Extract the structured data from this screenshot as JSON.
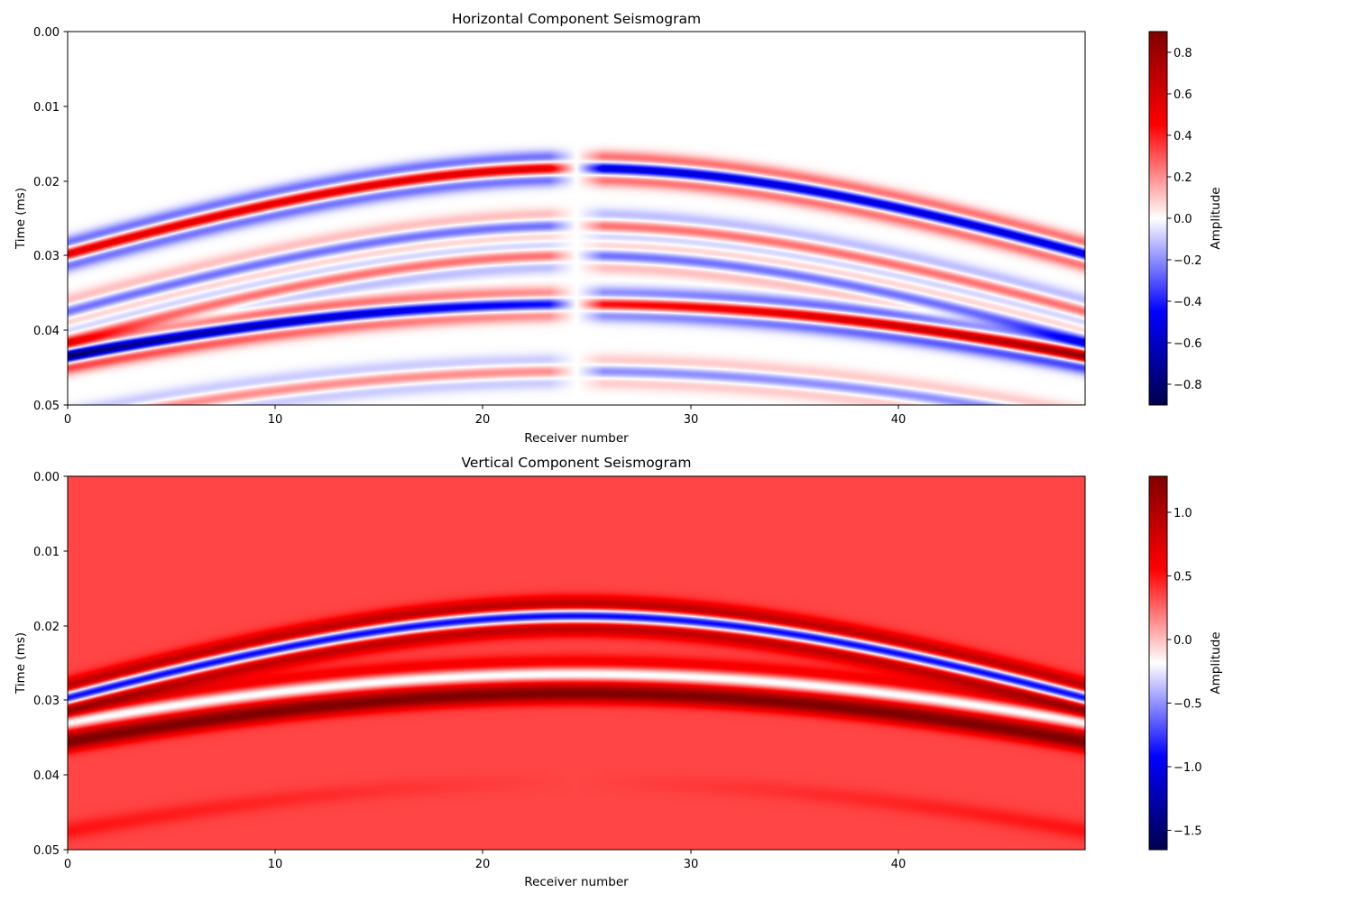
{
  "chart_data": [
    {
      "type": "heatmap",
      "title": "Horizontal Component Seismogram",
      "xlabel": "Receiver number",
      "ylabel": "Time (ms)",
      "xlim": [
        0,
        49
      ],
      "ylim": [
        0.05,
        0.0
      ],
      "x_ticks": [
        "0",
        "10",
        "20",
        "30",
        "40"
      ],
      "y_ticks": [
        "0.00",
        "0.01",
        "0.02",
        "0.03",
        "0.04",
        "0.05"
      ],
      "colormap": "seismic",
      "colorbar": {
        "label": "Amplitude",
        "range": [
          -0.9,
          0.9
        ],
        "ticks": [
          "−0.8",
          "−0.6",
          "−0.4",
          "−0.2",
          "0.0",
          "0.2",
          "0.4",
          "0.6",
          "0.8"
        ]
      },
      "wavefield": {
        "component": "horizontal",
        "source_receiver": 24.5,
        "direct_arrival_apex_time": 0.0175,
        "direct_arrival_edge_time": 0.029,
        "second_arrival_apex_time": 0.0365,
        "second_arrival_edge_time": 0.0435,
        "sign_flip_at_source": true,
        "peak_amplitude": 0.9
      },
      "grid": false
    },
    {
      "type": "heatmap",
      "title": "Vertical Component Seismogram",
      "xlabel": "Receiver number",
      "ylabel": "Time (ms)",
      "xlim": [
        0,
        49
      ],
      "ylim": [
        0.05,
        0.0
      ],
      "x_ticks": [
        "0",
        "10",
        "20",
        "30",
        "40"
      ],
      "y_ticks": [
        "0.00",
        "0.01",
        "0.02",
        "0.03",
        "0.04",
        "0.05"
      ],
      "colormap": "seismic",
      "colorbar": {
        "label": "Amplitude",
        "range": [
          -1.65,
          1.28
        ],
        "ticks": [
          "−1.5",
          "−1.0",
          "−0.5",
          "0.0",
          "0.5",
          "1.0"
        ]
      },
      "wavefield": {
        "component": "vertical",
        "background_level": 0.35,
        "direct_arrival_apex_time": 0.0175,
        "direct_arrival_edge_time": 0.0285,
        "second_arrival_apex_time": 0.0265,
        "second_arrival_edge_time": 0.033,
        "peak_amplitude": 1.28,
        "trough_amplitude": -1.65
      },
      "grid": false
    }
  ]
}
